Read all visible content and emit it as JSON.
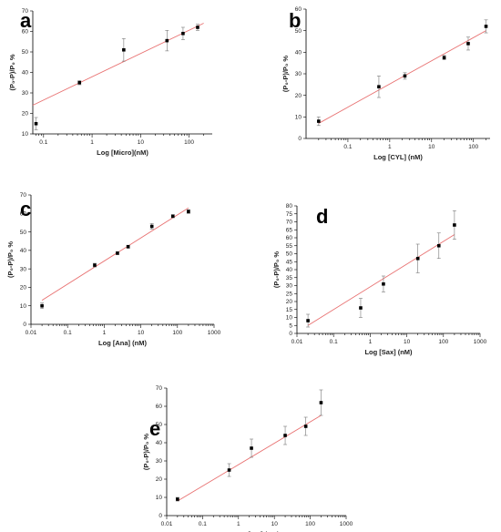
{
  "chart_data": [
    {
      "panel": "a",
      "type": "scatter",
      "xlabel": "Log [Micro](nM)",
      "ylabel": "(P₀-P)/P₀ %",
      "xscale": "log",
      "xlim": [
        0.06,
        300
      ],
      "ylim": [
        10,
        70
      ],
      "xticks": [
        0.1,
        1,
        10,
        100
      ],
      "xtick_labels": [
        "0.1",
        "1",
        "10",
        "100"
      ],
      "yticks": [
        10,
        20,
        30,
        40,
        50,
        60,
        70
      ],
      "x": [
        0.07,
        0.55,
        4.5,
        35,
        75,
        150
      ],
      "y": [
        15,
        35,
        51,
        55.5,
        59,
        62
      ],
      "yerr": [
        3,
        1,
        5.5,
        5,
        3,
        1.5
      ],
      "fit": {
        "x": [
          0.06,
          200
        ],
        "y": [
          24,
          64
        ]
      }
    },
    {
      "panel": "b",
      "type": "scatter",
      "xlabel": "Log [CYL] (nM)",
      "ylabel": "(P₀-P)/P₀ %",
      "xscale": "log",
      "xlim": [
        0.01,
        250
      ],
      "ylim": [
        0,
        60
      ],
      "xticks": [
        0.1,
        1,
        10,
        100
      ],
      "xtick_labels": [
        "0.1",
        "1",
        "10",
        "100"
      ],
      "yticks": [
        0,
        10,
        20,
        30,
        40,
        50,
        60
      ],
      "x": [
        0.02,
        0.55,
        2.3,
        20,
        75,
        200
      ],
      "y": [
        8,
        24,
        29,
        37.5,
        44,
        52
      ],
      "yerr": [
        2,
        5,
        1.5,
        1,
        3,
        3
      ],
      "fit": {
        "x": [
          0.02,
          200
        ],
        "y": [
          7,
          50
        ]
      }
    },
    {
      "panel": "c",
      "type": "scatter",
      "xlabel": "Log [Ana] (nM)",
      "ylabel": "(P₀-P)/P₀ %",
      "xscale": "log",
      "xlim": [
        0.01,
        1000
      ],
      "ylim": [
        0,
        70
      ],
      "xticks": [
        0.01,
        0.1,
        1,
        10,
        100,
        1000
      ],
      "xtick_labels": [
        "0.01",
        "0.1",
        "1",
        "10",
        "100",
        "1000"
      ],
      "yticks": [
        0,
        10,
        20,
        30,
        40,
        50,
        60,
        70
      ],
      "x": [
        0.02,
        0.55,
        2.3,
        4.5,
        20,
        75,
        200
      ],
      "y": [
        10,
        32,
        38.5,
        42,
        53,
        58.5,
        61
      ],
      "yerr": [
        1.5,
        1,
        0.8,
        0.8,
        1.5,
        0.8,
        1
      ],
      "fit": {
        "x": [
          0.02,
          200
        ],
        "y": [
          13,
          63
        ]
      }
    },
    {
      "panel": "d",
      "type": "scatter",
      "xlabel": "Log [Sax] (nM)",
      "ylabel": "(P₀-P)/P₀ %",
      "xscale": "log",
      "xlim": [
        0.01,
        1000
      ],
      "ylim": [
        0,
        80
      ],
      "xticks": [
        0.01,
        0.1,
        1,
        10,
        100,
        1000
      ],
      "xtick_labels": [
        "0.01",
        "0.1",
        "1",
        "10",
        "100",
        "1000"
      ],
      "yticks": [
        0,
        5,
        10,
        15,
        20,
        25,
        30,
        35,
        40,
        45,
        50,
        55,
        60,
        65,
        70,
        75,
        80
      ],
      "x": [
        0.02,
        0.55,
        2.3,
        20,
        75,
        200
      ],
      "y": [
        8,
        16,
        31,
        47,
        55,
        68
      ],
      "yerr": [
        4,
        6,
        5,
        9,
        8,
        9
      ],
      "fit": {
        "x": [
          0.02,
          200
        ],
        "y": [
          5,
          62
        ]
      }
    },
    {
      "panel": "e",
      "type": "scatter",
      "xlabel": "Log [OA] (nM)",
      "ylabel": "(P₀-P)/P₀ %",
      "xscale": "log",
      "xlim": [
        0.01,
        1000
      ],
      "ylim": [
        0,
        70
      ],
      "xticks": [
        0.01,
        0.1,
        1,
        10,
        100,
        1000
      ],
      "xtick_labels": [
        "0.01",
        "0.1",
        "1",
        "10",
        "100",
        "1000"
      ],
      "yticks": [
        0,
        10,
        20,
        30,
        40,
        50,
        60,
        70
      ],
      "x": [
        0.02,
        0.55,
        2.3,
        20,
        75,
        200
      ],
      "y": [
        9,
        25,
        37,
        44,
        49,
        62
      ],
      "yerr": [
        1,
        3.5,
        5,
        5,
        5,
        7
      ],
      "fit": {
        "x": [
          0.02,
          200
        ],
        "y": [
          8,
          55
        ]
      }
    }
  ]
}
